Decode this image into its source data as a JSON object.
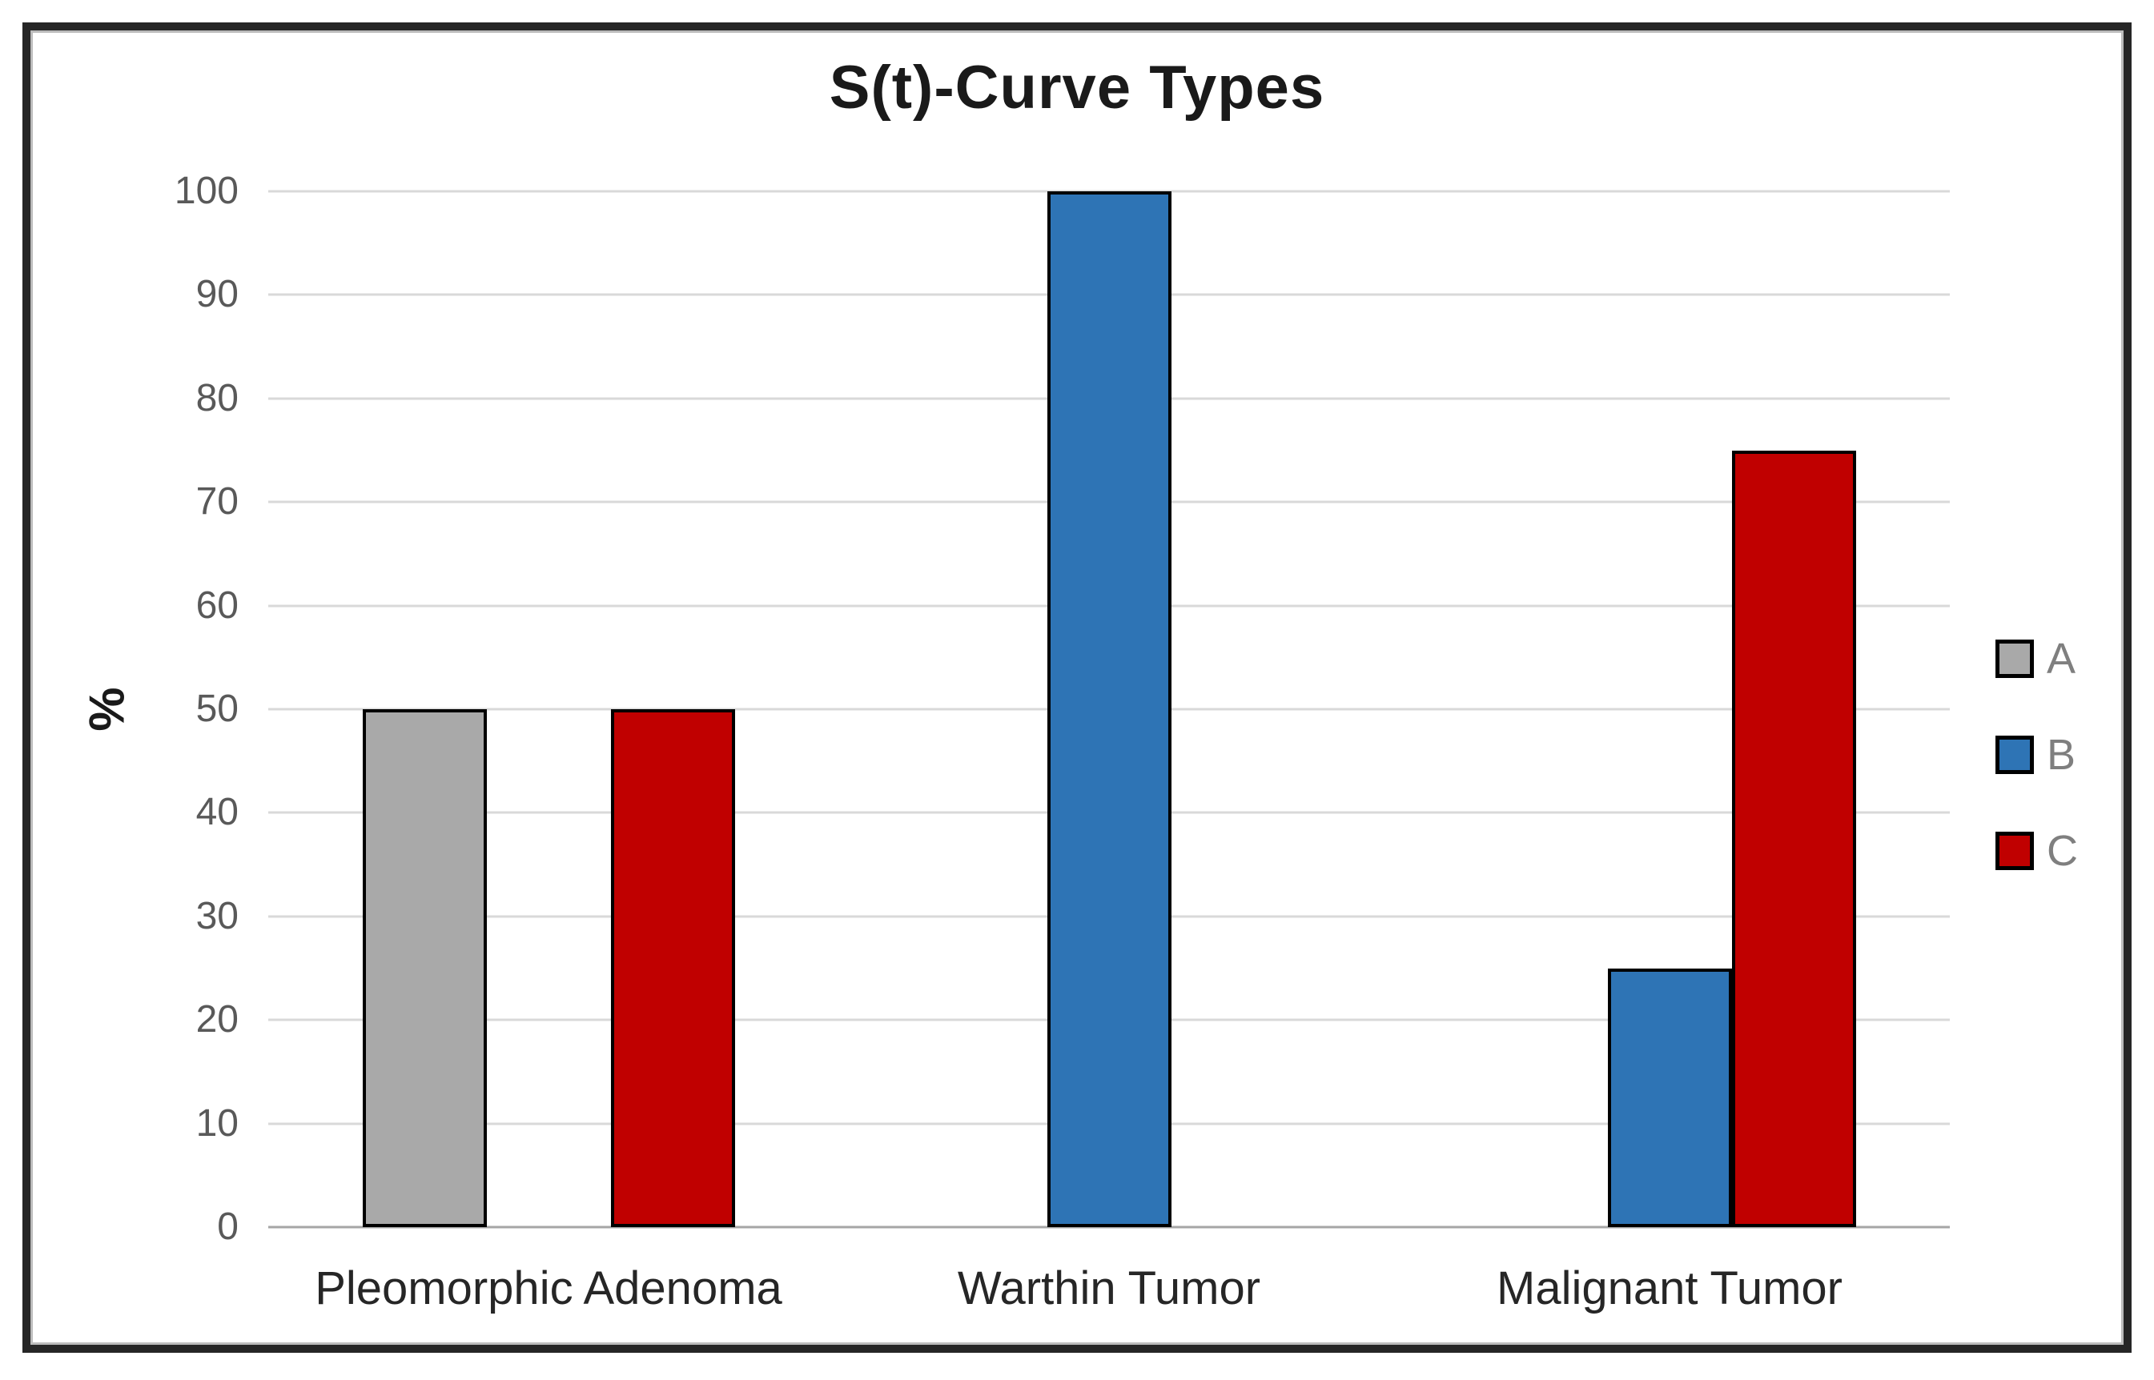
{
  "chart_data": {
    "type": "bar",
    "title": "S(t)-Curve Types",
    "ylabel": "%",
    "xlabel": "",
    "categories": [
      "Pleomorphic Adenoma",
      "Warthin Tumor",
      "Malignant Tumor"
    ],
    "series": [
      {
        "name": "A",
        "color": "#A9A9A9",
        "values": [
          50,
          0,
          0
        ]
      },
      {
        "name": "B",
        "color": "#2E74B5",
        "values": [
          0,
          100,
          25
        ]
      },
      {
        "name": "C",
        "color": "#C00000",
        "values": [
          50,
          0,
          75
        ]
      }
    ],
    "y_ticks": [
      0,
      10,
      20,
      30,
      40,
      50,
      60,
      70,
      80,
      90,
      100
    ],
    "ylim": [
      0,
      100
    ],
    "grid": true,
    "legend_position": "right",
    "colors": {
      "gridline": "#D9D9D9",
      "axis_baseline": "#A6A6A6",
      "tick_text": "#595959",
      "category_text": "#262626",
      "title_text": "#1a1a1a",
      "legend_text": "#7F7F7F",
      "bar_outline": "#000000",
      "frame_border": "#262626",
      "background": "#FFFFFF"
    }
  }
}
